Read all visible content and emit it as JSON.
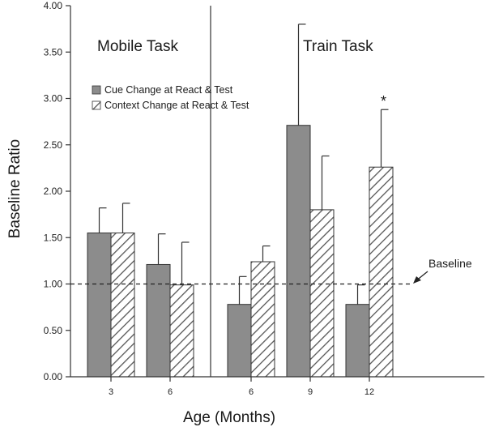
{
  "chart_data": {
    "type": "bar",
    "ylabel": "Baseline Ratio",
    "xlabel": "Age (Months)",
    "ylim": [
      0,
      4.0
    ],
    "yticks": [
      "0.00",
      "0.50",
      "1.00",
      "1.50",
      "2.00",
      "2.50",
      "3.00",
      "3.50",
      "4.00"
    ],
    "panels": [
      {
        "title": "Mobile Task",
        "categories": [
          "3",
          "6"
        ],
        "series": [
          {
            "name": "Cue Change at React & Test",
            "values": [
              1.55,
              1.21
            ],
            "errors": [
              0.27,
              0.33
            ]
          },
          {
            "name": "Context Change at React & Test",
            "values": [
              1.55,
              0.99
            ],
            "errors": [
              0.32,
              0.46
            ]
          }
        ]
      },
      {
        "title": "Train Task",
        "categories": [
          "6",
          "9",
          "12"
        ],
        "series": [
          {
            "name": "Cue Change at React & Test",
            "values": [
              0.78,
              2.71
            ],
            "errors": [
              0.3,
              1.09
            ]
          },
          {
            "name": "Context Change at React & Test",
            "values": [
              1.24,
              1.8
            ],
            "errors": [
              0.17,
              0.58
            ]
          }
        ]
      }
    ],
    "train_12_values": [
      0.78,
      2.26
    ],
    "train_12_errors": [
      0.21,
      0.62
    ],
    "baseline_value": 1.0,
    "baseline_label": "Baseline",
    "significance_marker": "*",
    "legend": {
      "placement": "top-center",
      "entries": [
        "Cue Change at React & Test",
        "Context Change at React & Test"
      ]
    },
    "colors": {
      "cue": "#8c8c8c",
      "context_hatch": "#555555",
      "axis": "#333333"
    }
  }
}
